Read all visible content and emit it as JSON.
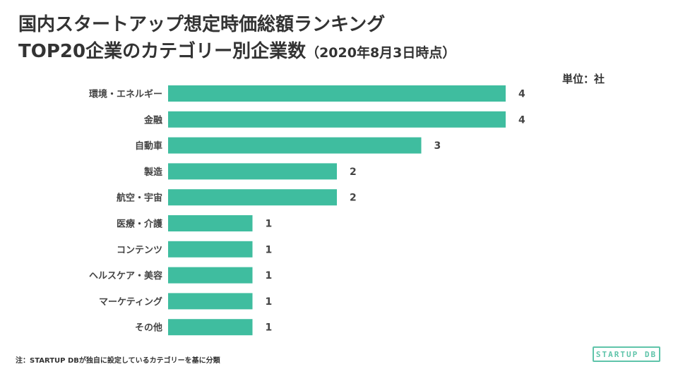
{
  "header": {
    "title_line1": "国内スタートアップ想定時価総額ランキング",
    "title_line2_main": "TOP20企業のカテゴリー別企業数",
    "title_line2_date": "（2020年8月3日時点）"
  },
  "unit_label": "単位：社",
  "footnote": "注：STARTUP DBが独自に設定しているカテゴリーを基に分類",
  "logo_text": "STARTUP DB",
  "colors": {
    "bar": "#3fbd9f",
    "text": "#444444",
    "logo": "#5fc4aa"
  },
  "chart_data": {
    "type": "bar",
    "orientation": "horizontal",
    "categories": [
      "環境・エネルギー",
      "金融",
      "自動車",
      "製造",
      "航空・宇宙",
      "医療・介護",
      "コンテンツ",
      "ヘルスケア・美容",
      "マーケティング",
      "その他"
    ],
    "values": [
      4,
      4,
      3,
      2,
      2,
      1,
      1,
      1,
      1,
      1
    ],
    "xlim": [
      0,
      4
    ],
    "grid": false,
    "legend": "none"
  }
}
